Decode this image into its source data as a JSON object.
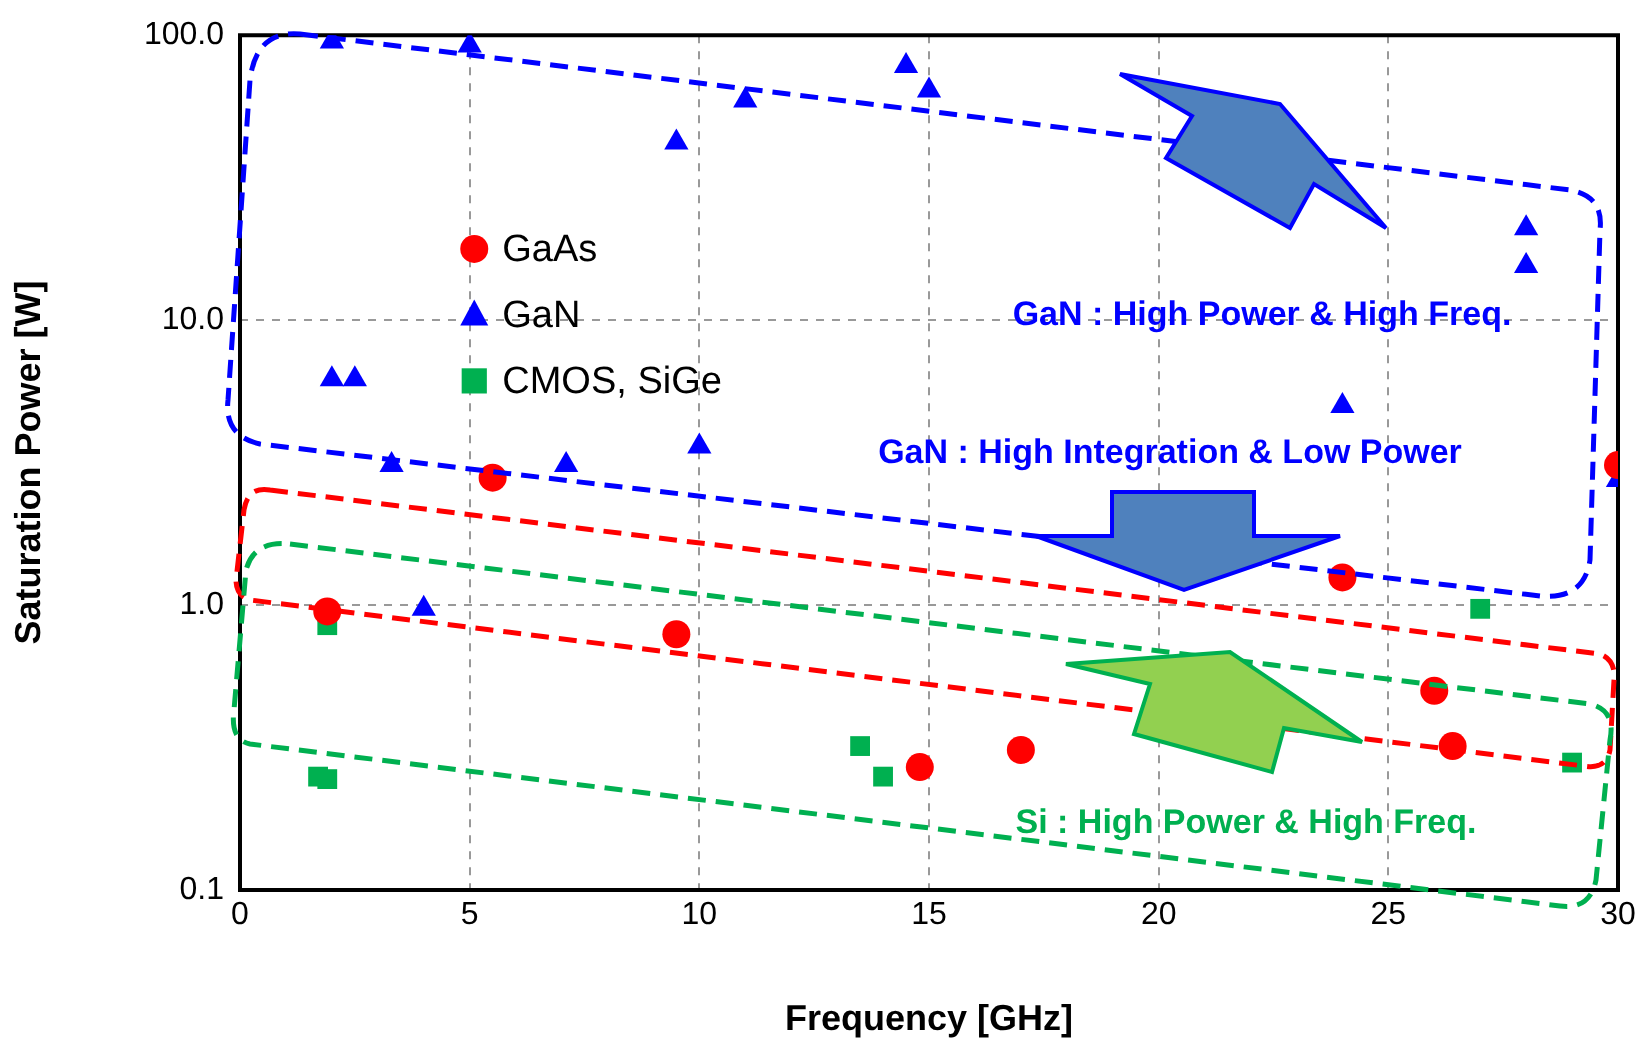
{
  "chart_data": {
    "type": "scatter",
    "xlabel": "Frequency [GHz]",
    "ylabel": "Saturation Power [W]",
    "log": "y",
    "grid": true,
    "legend": "top left",
    "xlim": [
      0,
      30
    ],
    "xticks": [
      0,
      5,
      10,
      15,
      20,
      25,
      30
    ],
    "ylim": [
      0.1,
      100
    ],
    "yticks": [
      {
        "value": 0.1,
        "label": "0.1"
      },
      {
        "value": 1,
        "label": "1.0"
      },
      {
        "value": 10,
        "label": "10.0"
      },
      {
        "value": 100,
        "label": "100.0"
      }
    ],
    "series": [
      {
        "name": "GaAs",
        "color": "#ff0000",
        "marker": "circle",
        "x": [
          1.9,
          5.5,
          9.5,
          14.8,
          17,
          24,
          26,
          26.4,
          30
        ],
        "values": [
          0.95,
          2.8,
          0.79,
          0.27,
          0.31,
          1.25,
          0.5,
          0.32,
          3.1
        ]
      },
      {
        "name": "GaN",
        "color": "#0000ff",
        "marker": "triangle",
        "x": [
          2,
          5,
          14.5,
          15,
          11,
          9.5,
          2,
          2.5,
          3.3,
          7.1,
          10,
          4,
          28,
          28,
          24,
          30
        ],
        "values": [
          95,
          92,
          78,
          64,
          59,
          42,
          6.2,
          6.2,
          3.1,
          3.1,
          3.6,
          0.97,
          21,
          15.5,
          5,
          2.75
        ]
      },
      {
        "name": "CMOS, SiGe",
        "color": "#00b050",
        "marker": "square",
        "x": [
          1.9,
          1.7,
          1.9,
          13.5,
          14,
          27,
          29
        ],
        "values": [
          0.85,
          0.25,
          0.245,
          0.32,
          0.25,
          0.97,
          0.28
        ]
      }
    ],
    "annotations": [
      "GaN : High Power & High Freq.",
      "GaN : High Integration & Low Power",
      "Si : High Power & High Freq."
    ]
  }
}
